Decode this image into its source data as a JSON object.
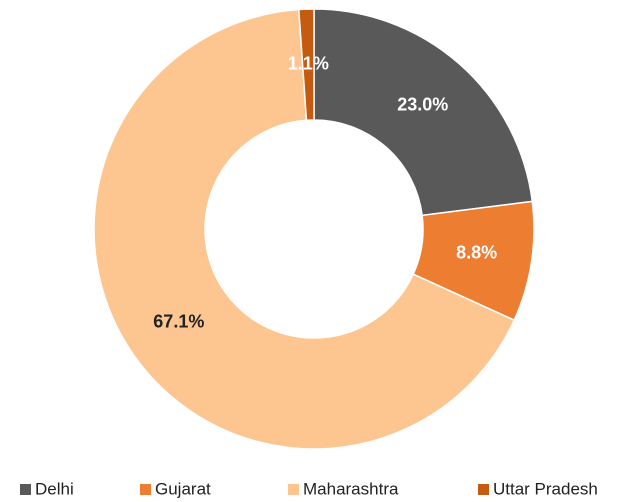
{
  "chart_data": {
    "type": "donut",
    "categories": [
      "Delhi",
      "Gujarat",
      "Maharashtra",
      "Uttar Pradesh"
    ],
    "values": [
      23.0,
      8.8,
      67.1,
      1.1
    ],
    "value_labels": [
      "23.0%",
      "8.8%",
      "67.1%",
      "1.1%"
    ],
    "colors": [
      "#595959",
      "#ed7d31",
      "#fdc690",
      "#c55a11"
    ],
    "legend": "bottom"
  }
}
